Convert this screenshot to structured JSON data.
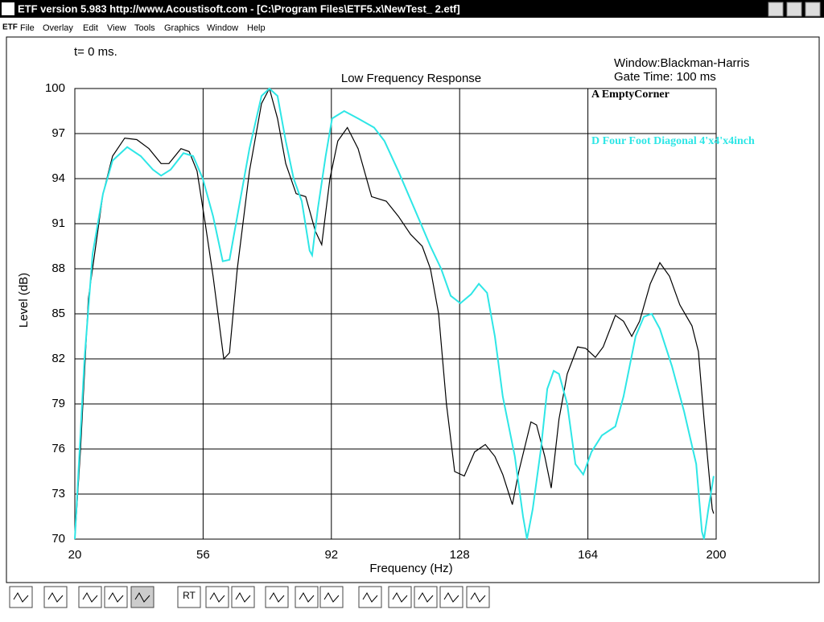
{
  "window": {
    "title": "ETF version 5.983 http://www.Acoustisoft.com - [C:\\Program Files\\ETF5.x\\NewTest_ 2.etf]",
    "menu": [
      "File",
      "Overlay",
      "Edit",
      "View",
      "Tools",
      "Graphics",
      "Window",
      "Help"
    ],
    "time_label": "t= 0 ms.",
    "window_label": "Window:Blackman-Harris",
    "gate_label": "Gate Time: 100 ms",
    "toolbar_button": "RT"
  },
  "chart_data": {
    "type": "line",
    "title": "Low Frequency Response",
    "x_label": "Frequency (Hz)",
    "y_label": "Level (dB)",
    "xlim": [
      20,
      200
    ],
    "ylim": [
      70,
      100
    ],
    "xticks": [
      20,
      56,
      92,
      128,
      164,
      200
    ],
    "yticks": [
      70,
      73,
      76,
      79,
      82,
      85,
      88,
      91,
      94,
      97,
      100
    ],
    "grid": true,
    "legend_position": "upper right",
    "series": [
      {
        "name": "A EmptyCorner",
        "color": "#000000",
        "x": [
          20,
          21.6,
          23.8,
          27.9,
          30.6,
          34,
          37.4,
          40.8,
          44.2,
          46.4,
          49.8,
          52.1,
          54.3,
          56.6,
          58.8,
          61.8,
          63.4,
          65.6,
          69,
          72.4,
          74.6,
          76.9,
          79.2,
          82.1,
          84.8,
          87.5,
          89.3,
          91.6,
          93.8,
          96.5,
          99.5,
          103.3,
          107.4,
          110.8,
          114.2,
          117.5,
          119.8,
          122.1,
          124.3,
          126.6,
          129.3,
          132.2,
          135.2,
          137.9,
          140.1,
          142.8,
          144.6,
          148,
          149.6,
          151.9,
          153.7,
          155.9,
          158.2,
          161.1,
          163.4,
          166.1,
          168.3,
          171.7,
          174,
          176.3,
          178.5,
          181.5,
          184.2,
          186.9,
          189.8,
          193.2,
          195,
          196.6,
          198.9,
          199.3
        ],
        "values": [
          70,
          76,
          86,
          93,
          95.5,
          96.7,
          96.6,
          96,
          95,
          95,
          96,
          95.8,
          94.5,
          91,
          87.5,
          82,
          82.4,
          88,
          94.5,
          99,
          100,
          98,
          95,
          93,
          92.8,
          90.5,
          89.6,
          94,
          96.5,
          97.4,
          96,
          92.8,
          92.5,
          91.5,
          90.3,
          89.5,
          88,
          85,
          79,
          74.5,
          74.2,
          75.8,
          76.3,
          75.5,
          74.3,
          72.3,
          74.5,
          77.8,
          77.6,
          75.5,
          73.4,
          78,
          81,
          82.8,
          82.7,
          82.1,
          82.8,
          84.9,
          84.5,
          83.5,
          84.5,
          87,
          88.4,
          87.5,
          85.6,
          84.2,
          82.5,
          78,
          72,
          71.7
        ]
      },
      {
        "name": "D Four Foot Diagonal 4'x4'x4inch",
        "color": "#2ee6e6",
        "x": [
          20,
          22.7,
          25,
          27.9,
          30.6,
          34.7,
          38.5,
          41.9,
          44.2,
          46.9,
          50.5,
          53.2,
          55.9,
          58.8,
          61.5,
          63.4,
          65.6,
          69,
          72.4,
          74.6,
          76.9,
          79.2,
          81.4,
          83.7,
          85.9,
          86.6,
          88.2,
          90.4,
          92.2,
          95.6,
          99.5,
          104,
          106.9,
          110.8,
          115.3,
          119.8,
          122.8,
          125.5,
          128.2,
          131.2,
          133.4,
          135.7,
          137.9,
          140.1,
          143.5,
          145.8,
          146.9,
          148.5,
          150.8,
          152.6,
          154.4,
          155.9,
          158.2,
          160.5,
          162.7,
          165,
          167.9,
          171.7,
          174,
          177.4,
          179.7,
          181.9,
          184.2,
          187.6,
          191,
          194.4,
          196,
          196.6,
          197.8,
          199.3
        ],
        "values": [
          70,
          82,
          89,
          93,
          95.2,
          96.1,
          95.5,
          94.6,
          94.2,
          94.6,
          95.7,
          95.5,
          94,
          91.5,
          88.5,
          88.6,
          91.5,
          96,
          99.5,
          100,
          99.5,
          96.5,
          94,
          92.5,
          89.2,
          88.9,
          92,
          95.5,
          98,
          98.5,
          98,
          97.4,
          96.5,
          94.5,
          92,
          89.5,
          88,
          86.2,
          85.7,
          86.3,
          87,
          86.4,
          83.5,
          79.5,
          75.5,
          71.5,
          70,
          72,
          76,
          80,
          81.2,
          81,
          79,
          75,
          74.3,
          75.8,
          76.9,
          77.5,
          79.5,
          83.5,
          84.8,
          85,
          84,
          81.5,
          78.5,
          75,
          70.5,
          70,
          72,
          74.2
        ]
      }
    ]
  }
}
